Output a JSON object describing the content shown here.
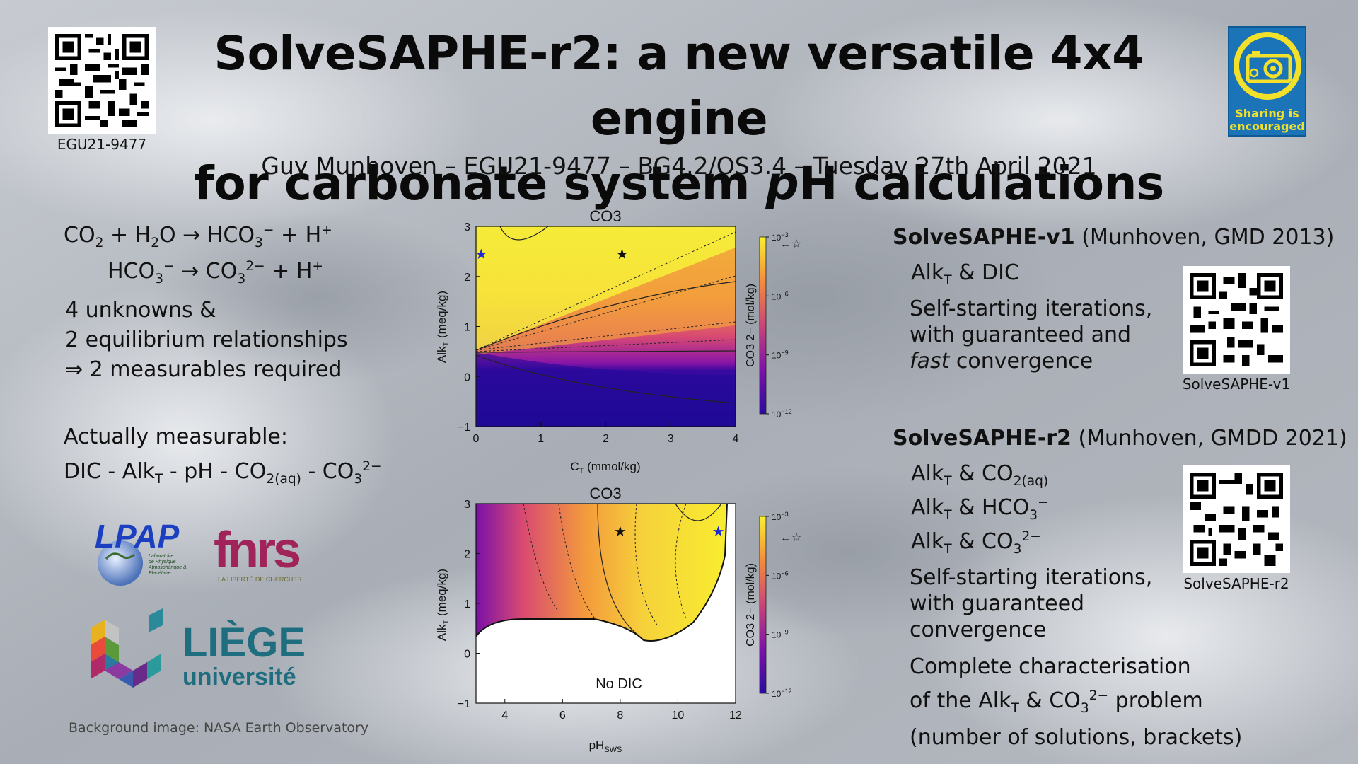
{
  "title_line1": "SolveSAPHE-r2: a new versatile 4x4 engine",
  "title_line2_pre": "for carbonate system ",
  "title_line2_italic": "p",
  "title_line2_post": "H calculations",
  "subtitle": "Guy Munhoven – EGU21-9477 – BG4.2/OS3.4 – Tuesday 27th April 2021",
  "qr_main_caption": "EGU21-9477",
  "badge_text_line1": "Sharing is",
  "badge_text_line2": "encouraged",
  "left": {
    "eq1": {
      "co": "CO",
      "s2": "2",
      "plus1": " + H",
      "h2": "2",
      "o": "O → HCO",
      "s3": "3",
      "m": "−",
      "plus2": " + H",
      "p": "+"
    },
    "eq2": {
      "hco": "HCO",
      "s3": "3",
      "m": "−",
      "arrow": " → CO",
      "s3b": "3",
      "m2": "2−",
      "plus": " + H",
      "p": "+"
    },
    "unknowns": [
      "4 unknowns &",
      "2 equilibrium relationships",
      "⇒ 2 measurables required"
    ],
    "measurable_title": "Actually measurable:",
    "measurable_list": {
      "a": "DIC - Alk",
      "t": "T",
      "b": " - pH - CO",
      "aq": "2(aq)",
      "c": " - CO",
      "s3": "3",
      "m": "2−"
    }
  },
  "right": {
    "v1_title_bold": "SolveSAPHE-v1",
    "v1_title_rest": " (Munhoven, GMD 2013)",
    "v1_item": {
      "a": "Alk",
      "t": "T",
      "b": " & DIC"
    },
    "v1_para": [
      "Self-starting iterations,",
      "with guaranteed and"
    ],
    "v1_para_italic": "fast",
    "v1_para_end": " convergence",
    "qr_v1_caption": "SolveSAPHE-v1",
    "r2_title_bold": "SolveSAPHE-r2",
    "r2_title_rest": " (Munhoven, GMDD 2021)",
    "r2_item1": {
      "a": "Alk",
      "t": "T",
      "b": " & CO",
      "s": "2(aq)"
    },
    "r2_item2": {
      "a": "Alk",
      "t": "T",
      "b": " & HCO",
      "s": "3",
      "p": "−"
    },
    "r2_item3": {
      "a": "Alk",
      "t": "T",
      "b": " & CO",
      "s": "3",
      "p": "2−"
    },
    "r2_para": [
      "Self-starting iterations,",
      "with guaranteed",
      "convergence"
    ],
    "qr_r2_caption": "SolveSAPHE-r2",
    "r2_complete": {
      "l1": "Complete characterisation",
      "l2a": "of the Alk",
      "t": "T",
      "l2b": " & CO",
      "s": "3",
      "p": "2−",
      "l2c": " problem",
      "l3": "(number of solutions, brackets)"
    }
  },
  "logos": {
    "lpap": "LPAP",
    "lpap_sub": [
      "Laboratoire",
      "de Physique",
      "Atmosphérique &",
      "Planétaire"
    ],
    "fnrs": "fnrs",
    "fnrs_sub": "LA LIBERTÉ DE CHERCHER",
    "liege": "LIÈGE",
    "universite": "université"
  },
  "credit": "Background image: NASA Earth Observatory",
  "chart_data": [
    {
      "type": "heatmap",
      "title": "CO3",
      "xlabel_main": "C",
      "xlabel_sub": "T",
      "xlabel_unit": " (mmol/kg)",
      "ylabel_main": "Alk",
      "ylabel_sub": "T",
      "ylabel_unit": " (meq/kg)",
      "xlim": [
        0,
        4
      ],
      "ylim": [
        -1,
        3
      ],
      "xticks": [
        "0",
        "1",
        "2",
        "3",
        "4"
      ],
      "yticks": [
        "−1",
        "0",
        "1",
        "2",
        "3"
      ],
      "colorbar_label": "CO3 2− (mol/kg)",
      "colorbar_ticks": [
        "10−12",
        "10−9",
        "10−6",
        "10−3"
      ],
      "colorbar_range_log10": [
        -12,
        -3
      ],
      "markers": [
        {
          "kind": "blue-star",
          "x": 0.08,
          "y": 2.45
        },
        {
          "kind": "black-star",
          "x": 2.25,
          "y": 2.45
        }
      ]
    },
    {
      "type": "heatmap",
      "title": "CO3",
      "xlabel_main": "pH",
      "xlabel_sub": "SWS",
      "ylabel_main": "Alk",
      "ylabel_sub": "T",
      "ylabel_unit": " (meq/kg)",
      "xlim": [
        3,
        12
      ],
      "ylim": [
        -1,
        3
      ],
      "xticks": [
        "4",
        "6",
        "8",
        "10",
        "12"
      ],
      "yticks": [
        "−1",
        "0",
        "1",
        "2",
        "3"
      ],
      "colorbar_label": "CO3 2− (mol/kg)",
      "colorbar_ticks": [
        "10−12",
        "10−9",
        "10−6",
        "10−3"
      ],
      "colorbar_range_log10": [
        -12,
        -3
      ],
      "annotation": "No DIC",
      "markers": [
        {
          "kind": "black-star",
          "x": 8.0,
          "y": 2.45
        },
        {
          "kind": "blue-star",
          "x": 11.4,
          "y": 2.45
        }
      ]
    }
  ]
}
